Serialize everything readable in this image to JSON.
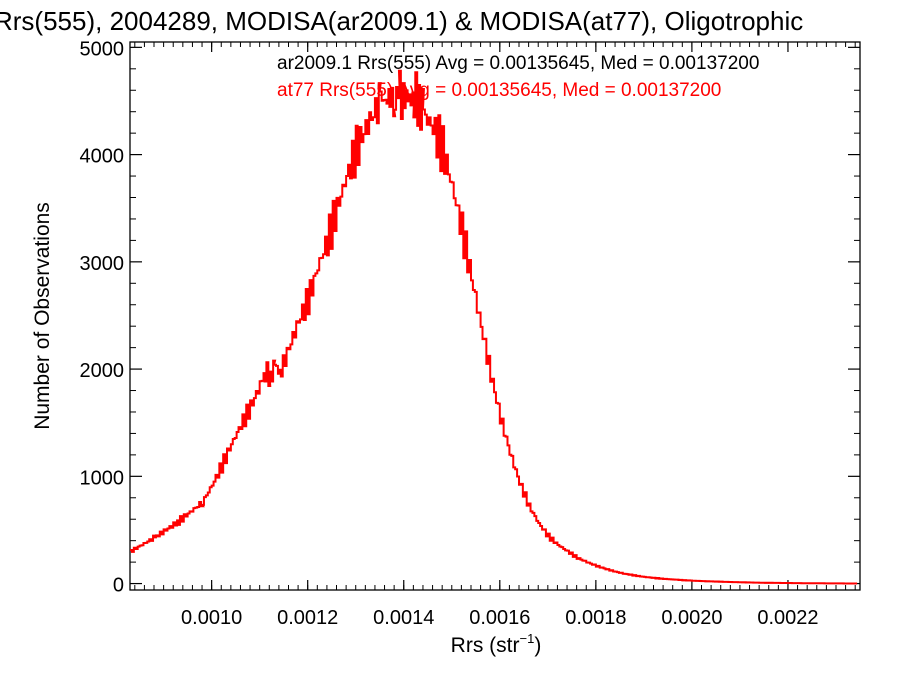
{
  "chart_data": {
    "type": "line",
    "title": "Rrs(555), 2004289, MODISA(ar2009.1) & MODISA(at77), Oligotrophic",
    "xlabel": "Rrs (str",
    "xlabel_sup": "−1",
    "xlabel_close": ")",
    "ylabel": "Number of Observations",
    "xlim": [
      0.00083,
      0.00235
    ],
    "ylim": [
      -60,
      5050
    ],
    "xticks": [
      0.001,
      0.0012,
      0.0014,
      0.0016,
      0.0018,
      0.002,
      0.0022
    ],
    "xtick_labels": [
      "0.0010",
      "0.0012",
      "0.0014",
      "0.0016",
      "0.0018",
      "0.0020",
      "0.0022"
    ],
    "yticks": [
      0,
      1000,
      2000,
      3000,
      4000,
      5000
    ],
    "ytick_labels": [
      "0",
      "1000",
      "2000",
      "3000",
      "4000",
      "5000"
    ],
    "legend_placement": "top-right",
    "annotations": [
      {
        "text": "ar2009.1 Rrs(555) Avg = 0.00135645, Med = 0.00137200",
        "color": "#000000"
      },
      {
        "text": "at77 Rrs(555) Avg = 0.00135645, Med = 0.00137200",
        "color": "#ff0000"
      }
    ],
    "series": [
      {
        "color": "#ff0000",
        "step": "histogram",
        "x": [
          0.00083,
          0.00088,
          0.00093,
          0.00098,
          0.001,
          0.00102,
          0.00104,
          0.00106,
          0.00108,
          0.0011,
          0.00111,
          0.00112,
          0.00113,
          0.00114,
          0.00116,
          0.00118,
          0.0012,
          0.00122,
          0.00124,
          0.00126,
          0.00128,
          0.0013,
          0.00132,
          0.00134,
          0.00135,
          0.00136,
          0.00137,
          0.00138,
          0.00139,
          0.0014,
          0.00141,
          0.00142,
          0.00143,
          0.00144,
          0.00146,
          0.00148,
          0.0015,
          0.00152,
          0.00154,
          0.00156,
          0.00158,
          0.0016,
          0.00162,
          0.00164,
          0.00166,
          0.00168,
          0.0017,
          0.00172,
          0.00174,
          0.00176,
          0.00178,
          0.0018,
          0.00182,
          0.00184,
          0.00186,
          0.00188,
          0.0019,
          0.00192,
          0.00194,
          0.00196,
          0.00198,
          0.002,
          0.00202,
          0.00204,
          0.00206,
          0.00208,
          0.0021,
          0.00212,
          0.00214,
          0.00216,
          0.00218,
          0.0022,
          0.00222,
          0.00224,
          0.00226,
          0.00228,
          0.0023,
          0.00232,
          0.00234
        ],
        "y": [
          300,
          430,
          580,
          760,
          920,
          1100,
          1300,
          1480,
          1650,
          1850,
          2000,
          1900,
          2050,
          1950,
          2200,
          2450,
          2650,
          2950,
          3200,
          3500,
          3800,
          4050,
          4250,
          4420,
          4500,
          4550,
          4480,
          4560,
          4530,
          4540,
          4500,
          4560,
          4480,
          4380,
          4250,
          4050,
          3700,
          3300,
          2850,
          2400,
          1950,
          1550,
          1220,
          940,
          720,
          560,
          440,
          360,
          300,
          240,
          200,
          165,
          135,
          110,
          90,
          75,
          62,
          52,
          44,
          38,
          32,
          27,
          23,
          20,
          17,
          14,
          12,
          10,
          8,
          7,
          6,
          5,
          4,
          3,
          3,
          2,
          2,
          1,
          1
        ]
      }
    ]
  }
}
